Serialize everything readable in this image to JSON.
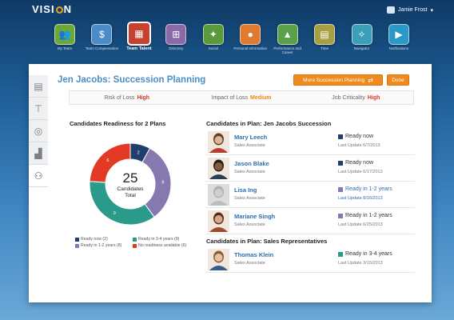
{
  "app": {
    "logo_prefix": "VISI",
    "logo_suffix": "N",
    "user_name": "Jamie Frost"
  },
  "nav": [
    {
      "label": "My Team",
      "icon": "team-icon",
      "color": "#6aa838",
      "glyph": "👥"
    },
    {
      "label": "Team Compensation",
      "icon": "compensation-icon",
      "color": "#4a8cc8",
      "glyph": "$"
    },
    {
      "label": "Team Talent",
      "icon": "talent-icon",
      "color": "#c8402e",
      "glyph": "▦",
      "active": true
    },
    {
      "label": "Directory",
      "icon": "directory-icon",
      "color": "#8c6aa8",
      "glyph": "⊞"
    },
    {
      "label": "Social",
      "icon": "social-icon",
      "color": "#5a9a3a",
      "glyph": "✦"
    },
    {
      "label": "Personal Information",
      "icon": "personal-info-icon",
      "color": "#e07a30",
      "glyph": "●"
    },
    {
      "label": "Performance and Career",
      "icon": "performance-icon",
      "color": "#5aa04a",
      "glyph": "▲"
    },
    {
      "label": "Time",
      "icon": "time-icon",
      "color": "#a8a040",
      "glyph": "▤"
    },
    {
      "label": "Navigator",
      "icon": "navigator-icon",
      "color": "#3aa0b8",
      "glyph": "✧"
    },
    {
      "label": "Notifications",
      "icon": "notifications-icon",
      "color": "#2a98c8",
      "glyph": "▶"
    }
  ],
  "page": {
    "title": "Jen Jacobs: Succession Planning",
    "more_button": "More Succession Planning",
    "done_button": "Done"
  },
  "risk": {
    "risk_label": "Risk of Loss",
    "risk_value": "High",
    "impact_label": "Impact of Loss",
    "impact_value": "Medium",
    "criticality_label": "Job Criticality",
    "criticality_value": "High",
    "colors": {
      "high": "#d9342b",
      "medium": "#e8891c"
    }
  },
  "readiness": {
    "header": "Candidates Readiness for 2 Plans",
    "center_number": "25",
    "center_label_1": "Candidates",
    "center_label_2": "Total"
  },
  "chart_data": {
    "type": "pie",
    "title": "Candidates Readiness for 2 Plans",
    "categories": [
      "Ready now",
      "Ready in 1-2 years",
      "Ready in 3-4 years",
      "No readiness available"
    ],
    "values": [
      2,
      8,
      9,
      6
    ],
    "labels": [
      "2",
      "8",
      "9",
      "6"
    ],
    "colors": [
      "#1f3f6e",
      "#8878b0",
      "#2a9a8a",
      "#e33a26"
    ],
    "legend": "bottom",
    "legend_entries": [
      "Ready now (2)",
      "Ready in 1-2 years (8)",
      "Ready in 3-4 years (9)",
      "No readiness available (6)"
    ]
  },
  "plan1": {
    "header": "Candidates in Plan: Jen Jacobs Succession",
    "candidates": [
      {
        "name": "Mary Leech",
        "role": "Sales Associate",
        "status": "Ready now",
        "update": "Last Update  6/7/2013",
        "color": "#1f3f6e",
        "blue": false
      },
      {
        "name": "Jason Blake",
        "role": "Sales Associate",
        "status": "Ready now",
        "update": "Last Update  6/17/2013",
        "color": "#1f3f6e",
        "blue": false
      },
      {
        "name": "Lisa Ing",
        "role": "Sales Associate",
        "status": "Ready in 1-2 years",
        "update": "Last Update  8/16/2013",
        "color": "#8878b0",
        "blue": true
      },
      {
        "name": "Mariane Singh",
        "role": "Sales Associate",
        "status": "Ready in 1-2 years",
        "update": "Last Update  6/25/2013",
        "color": "#8878b0",
        "blue": false
      }
    ]
  },
  "plan2": {
    "header": "Candidates in Plan: Sales Representatives",
    "candidates": [
      {
        "name": "Thomas Klein",
        "role": "Sales Associate",
        "status": "Ready in 3-4 years",
        "update": "Last Update  3/15/2013",
        "color": "#2a9a8a",
        "blue": false
      }
    ]
  },
  "side_tabs": [
    {
      "icon": "summary-icon",
      "glyph": "▤"
    },
    {
      "icon": "signpost-icon",
      "glyph": "⊤"
    },
    {
      "icon": "target-icon",
      "glyph": "◎"
    },
    {
      "icon": "bar-chart-icon",
      "glyph": "▟"
    },
    {
      "icon": "succession-icon",
      "glyph": "⚇",
      "active": true
    }
  ]
}
